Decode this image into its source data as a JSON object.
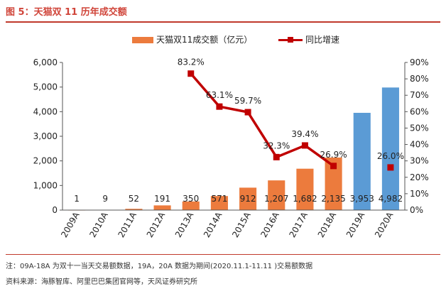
{
  "figure": {
    "title": "图 5：天猫双 11 历年成交额",
    "note": "注：09A-18A 为双十一当天交易额数据，19A，20A 数据为期间(2020.11.1-11.11 )交易额数据",
    "source": "资料来源：海豚智库、阿里巴巴集团官网等，天风证券研究所"
  },
  "colors": {
    "bar_actual": "#ec7b3d",
    "bar_period": "#5b9bd5",
    "line": "#c00000",
    "rule": "#c0392b"
  },
  "chart_data": {
    "type": "bar+line",
    "categories": [
      "2009A",
      "2010A",
      "2011A",
      "2012A",
      "2013A",
      "2014A",
      "2015A",
      "2016A",
      "2017A",
      "2018A",
      "2019A",
      "2020A"
    ],
    "series": [
      {
        "name": "天猫双11成交额（亿元）",
        "type": "bar",
        "axis": "left",
        "values": [
          1,
          9,
          52,
          191,
          350,
          571,
          912,
          1207,
          1682,
          2135,
          3953,
          4982
        ],
        "labels": [
          "1",
          "9",
          "52",
          "191",
          "350",
          "571",
          "912",
          "1,207",
          "1,682",
          "2,135",
          "3,953",
          "4,982"
        ]
      },
      {
        "name": "同比增速",
        "type": "line",
        "axis": "right",
        "values": [
          null,
          null,
          null,
          null,
          83.2,
          63.1,
          59.7,
          32.3,
          39.4,
          26.9,
          null,
          26.0
        ],
        "labels": [
          "",
          "",
          "",
          "",
          "83.2%",
          "63.1%",
          "59.7%",
          "32.3%",
          "39.4%",
          "26.9%",
          "",
          "26.0%"
        ]
      }
    ],
    "y_left": {
      "lim": [
        0,
        6000
      ],
      "ticks": [
        0,
        1000,
        2000,
        3000,
        4000,
        5000,
        6000
      ],
      "tick_labels": [
        "0",
        "1,000",
        "2,000",
        "3,000",
        "4,000",
        "5,000",
        "6,000"
      ]
    },
    "y_right": {
      "lim": [
        0,
        90
      ],
      "ticks": [
        0,
        10,
        20,
        30,
        40,
        50,
        60,
        70,
        80,
        90
      ],
      "tick_labels": [
        "0%",
        "10%",
        "20%",
        "30%",
        "40%",
        "50%",
        "60%",
        "70%",
        "80%",
        "90%"
      ]
    },
    "period_bar_categories": [
      "2019A",
      "2020A"
    ],
    "grid": false,
    "legend": "top-center"
  }
}
